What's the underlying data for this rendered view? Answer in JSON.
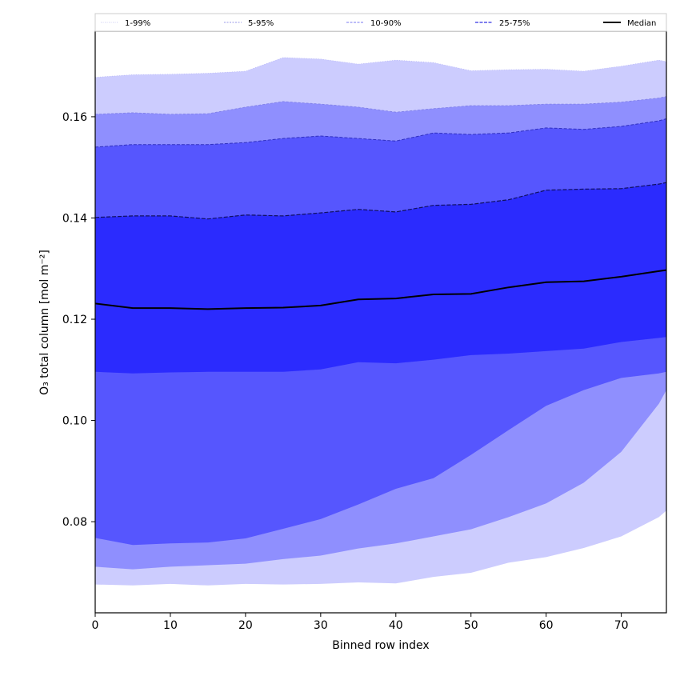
{
  "chart_data": {
    "type": "area",
    "title": "",
    "xlabel": "Binned row index",
    "ylabel": "O₃ total column [mol m⁻²]",
    "xlim": [
      0,
      76
    ],
    "ylim": [
      0.062,
      0.1769
    ],
    "xticks": [
      0,
      10,
      20,
      30,
      40,
      50,
      60,
      70
    ],
    "xtick_labels": [
      "0",
      "10",
      "20",
      "30",
      "40",
      "50",
      "60",
      "70"
    ],
    "yticks": [
      0.08,
      0.1,
      0.12,
      0.14,
      0.16
    ],
    "ytick_labels": [
      "0.08",
      "0.10",
      "0.12",
      "0.14",
      "0.16"
    ],
    "grid": false,
    "legend_placement": "top (above plot, single row)",
    "x": [
      0,
      5,
      10,
      15,
      20,
      25,
      30,
      35,
      40,
      45,
      50,
      55,
      60,
      65,
      70,
      75,
      76
    ],
    "bands": [
      {
        "name": "1-99%",
        "color": "#ccccfe",
        "line_color": "#b3b3f5",
        "lower": [
          0.0676,
          0.0674,
          0.0677,
          0.0674,
          0.0677,
          0.0676,
          0.0677,
          0.068,
          0.0678,
          0.0691,
          0.0699,
          0.0719,
          0.073,
          0.0748,
          0.0771,
          0.0809,
          0.0822
        ],
        "upper": [
          0.1678,
          0.1683,
          0.1684,
          0.1686,
          0.169,
          0.1717,
          0.1714,
          0.1704,
          0.1712,
          0.1707,
          0.1691,
          0.1693,
          0.1694,
          0.169,
          0.17,
          0.1712,
          0.1709
        ]
      },
      {
        "name": "5-95%",
        "color": "#8f8ffe",
        "line_color": "#8080e6",
        "lower": [
          0.0711,
          0.0706,
          0.0711,
          0.0714,
          0.0717,
          0.0726,
          0.0733,
          0.0747,
          0.0757,
          0.0771,
          0.0785,
          0.0809,
          0.0836,
          0.0877,
          0.0938,
          0.1033,
          0.106
        ],
        "upper": [
          0.1605,
          0.1608,
          0.1605,
          0.1606,
          0.1619,
          0.163,
          0.1625,
          0.1619,
          0.1609,
          0.1616,
          0.1622,
          0.1622,
          0.1625,
          0.1625,
          0.1629,
          0.1637,
          0.164
        ]
      },
      {
        "name": "10-90%",
        "color": "#5656fe",
        "line_color": "#3030c0",
        "lower": [
          0.0768,
          0.0754,
          0.0757,
          0.0759,
          0.0767,
          0.0786,
          0.0805,
          0.0834,
          0.0865,
          0.0886,
          0.0932,
          0.0981,
          0.1029,
          0.106,
          0.1084,
          0.1093,
          0.1096
        ],
        "upper": [
          0.154,
          0.1545,
          0.1545,
          0.1545,
          0.1549,
          0.1557,
          0.1562,
          0.1557,
          0.1552,
          0.1568,
          0.1565,
          0.1568,
          0.1578,
          0.1575,
          0.1581,
          0.1592,
          0.1596
        ]
      },
      {
        "name": "25-75%",
        "color": "#2b2bfe",
        "line_color": "#101060",
        "lower": [
          0.1096,
          0.1093,
          0.1095,
          0.1096,
          0.1096,
          0.1096,
          0.1101,
          0.1115,
          0.1113,
          0.112,
          0.1129,
          0.1132,
          0.1137,
          0.1142,
          0.1155,
          0.1163,
          0.1165
        ],
        "upper": [
          0.1401,
          0.1404,
          0.1404,
          0.1398,
          0.1406,
          0.1404,
          0.141,
          0.1417,
          0.1412,
          0.1425,
          0.1427,
          0.1436,
          0.1455,
          0.1457,
          0.1458,
          0.1467,
          0.147
        ]
      }
    ],
    "median": {
      "name": "Median",
      "color": "#000000",
      "values": [
        0.1231,
        0.1222,
        0.1222,
        0.122,
        0.1222,
        0.1223,
        0.1227,
        0.1239,
        0.1241,
        0.1249,
        0.125,
        0.1263,
        0.1273,
        0.1275,
        0.1284,
        0.1295,
        0.1297
      ]
    },
    "legend": [
      {
        "label": "1-99%",
        "style": "dotted",
        "color": "#b8b8f0"
      },
      {
        "label": "5-95%",
        "style": "dashed-thin",
        "color": "#9a9ae8"
      },
      {
        "label": "10-90%",
        "style": "dashed",
        "color": "#7a7af0"
      },
      {
        "label": "25-75%",
        "style": "dashed-thick",
        "color": "#5555e8"
      },
      {
        "label": "Median",
        "style": "solid",
        "color": "#000000"
      }
    ]
  }
}
